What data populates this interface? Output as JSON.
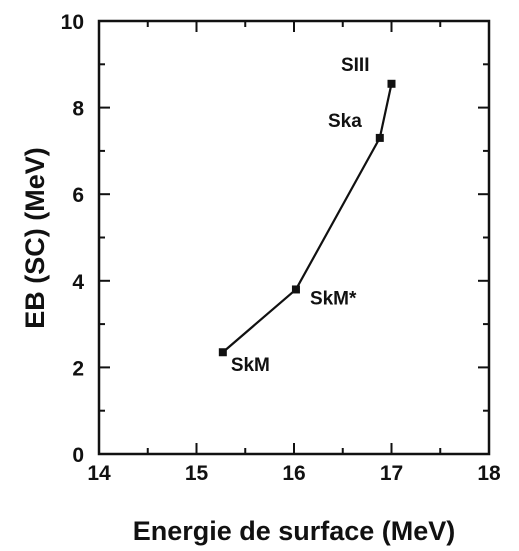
{
  "chart_data": {
    "type": "line",
    "title": "",
    "xlabel": "Energie de surface (MeV)",
    "ylabel": "EB (SC) (MeV)",
    "xlim": [
      14,
      18
    ],
    "ylim": [
      0,
      10
    ],
    "x_ticks": [
      "14",
      "15",
      "16",
      "17",
      "18"
    ],
    "y_ticks": [
      "0",
      "2",
      "4",
      "6",
      "8",
      "10"
    ],
    "grid": false,
    "legend": "none",
    "series": [
      {
        "points": [
          {
            "label": "SkM",
            "x": 15.27,
            "y": 2.35
          },
          {
            "label": "SkM*",
            "x": 16.02,
            "y": 3.8
          },
          {
            "label": "Ska",
            "x": 16.88,
            "y": 7.3
          },
          {
            "label": "SIII",
            "x": 17.0,
            "y": 8.55
          }
        ]
      }
    ],
    "colors": {
      "line": "#111111",
      "marker": "#111111"
    }
  }
}
